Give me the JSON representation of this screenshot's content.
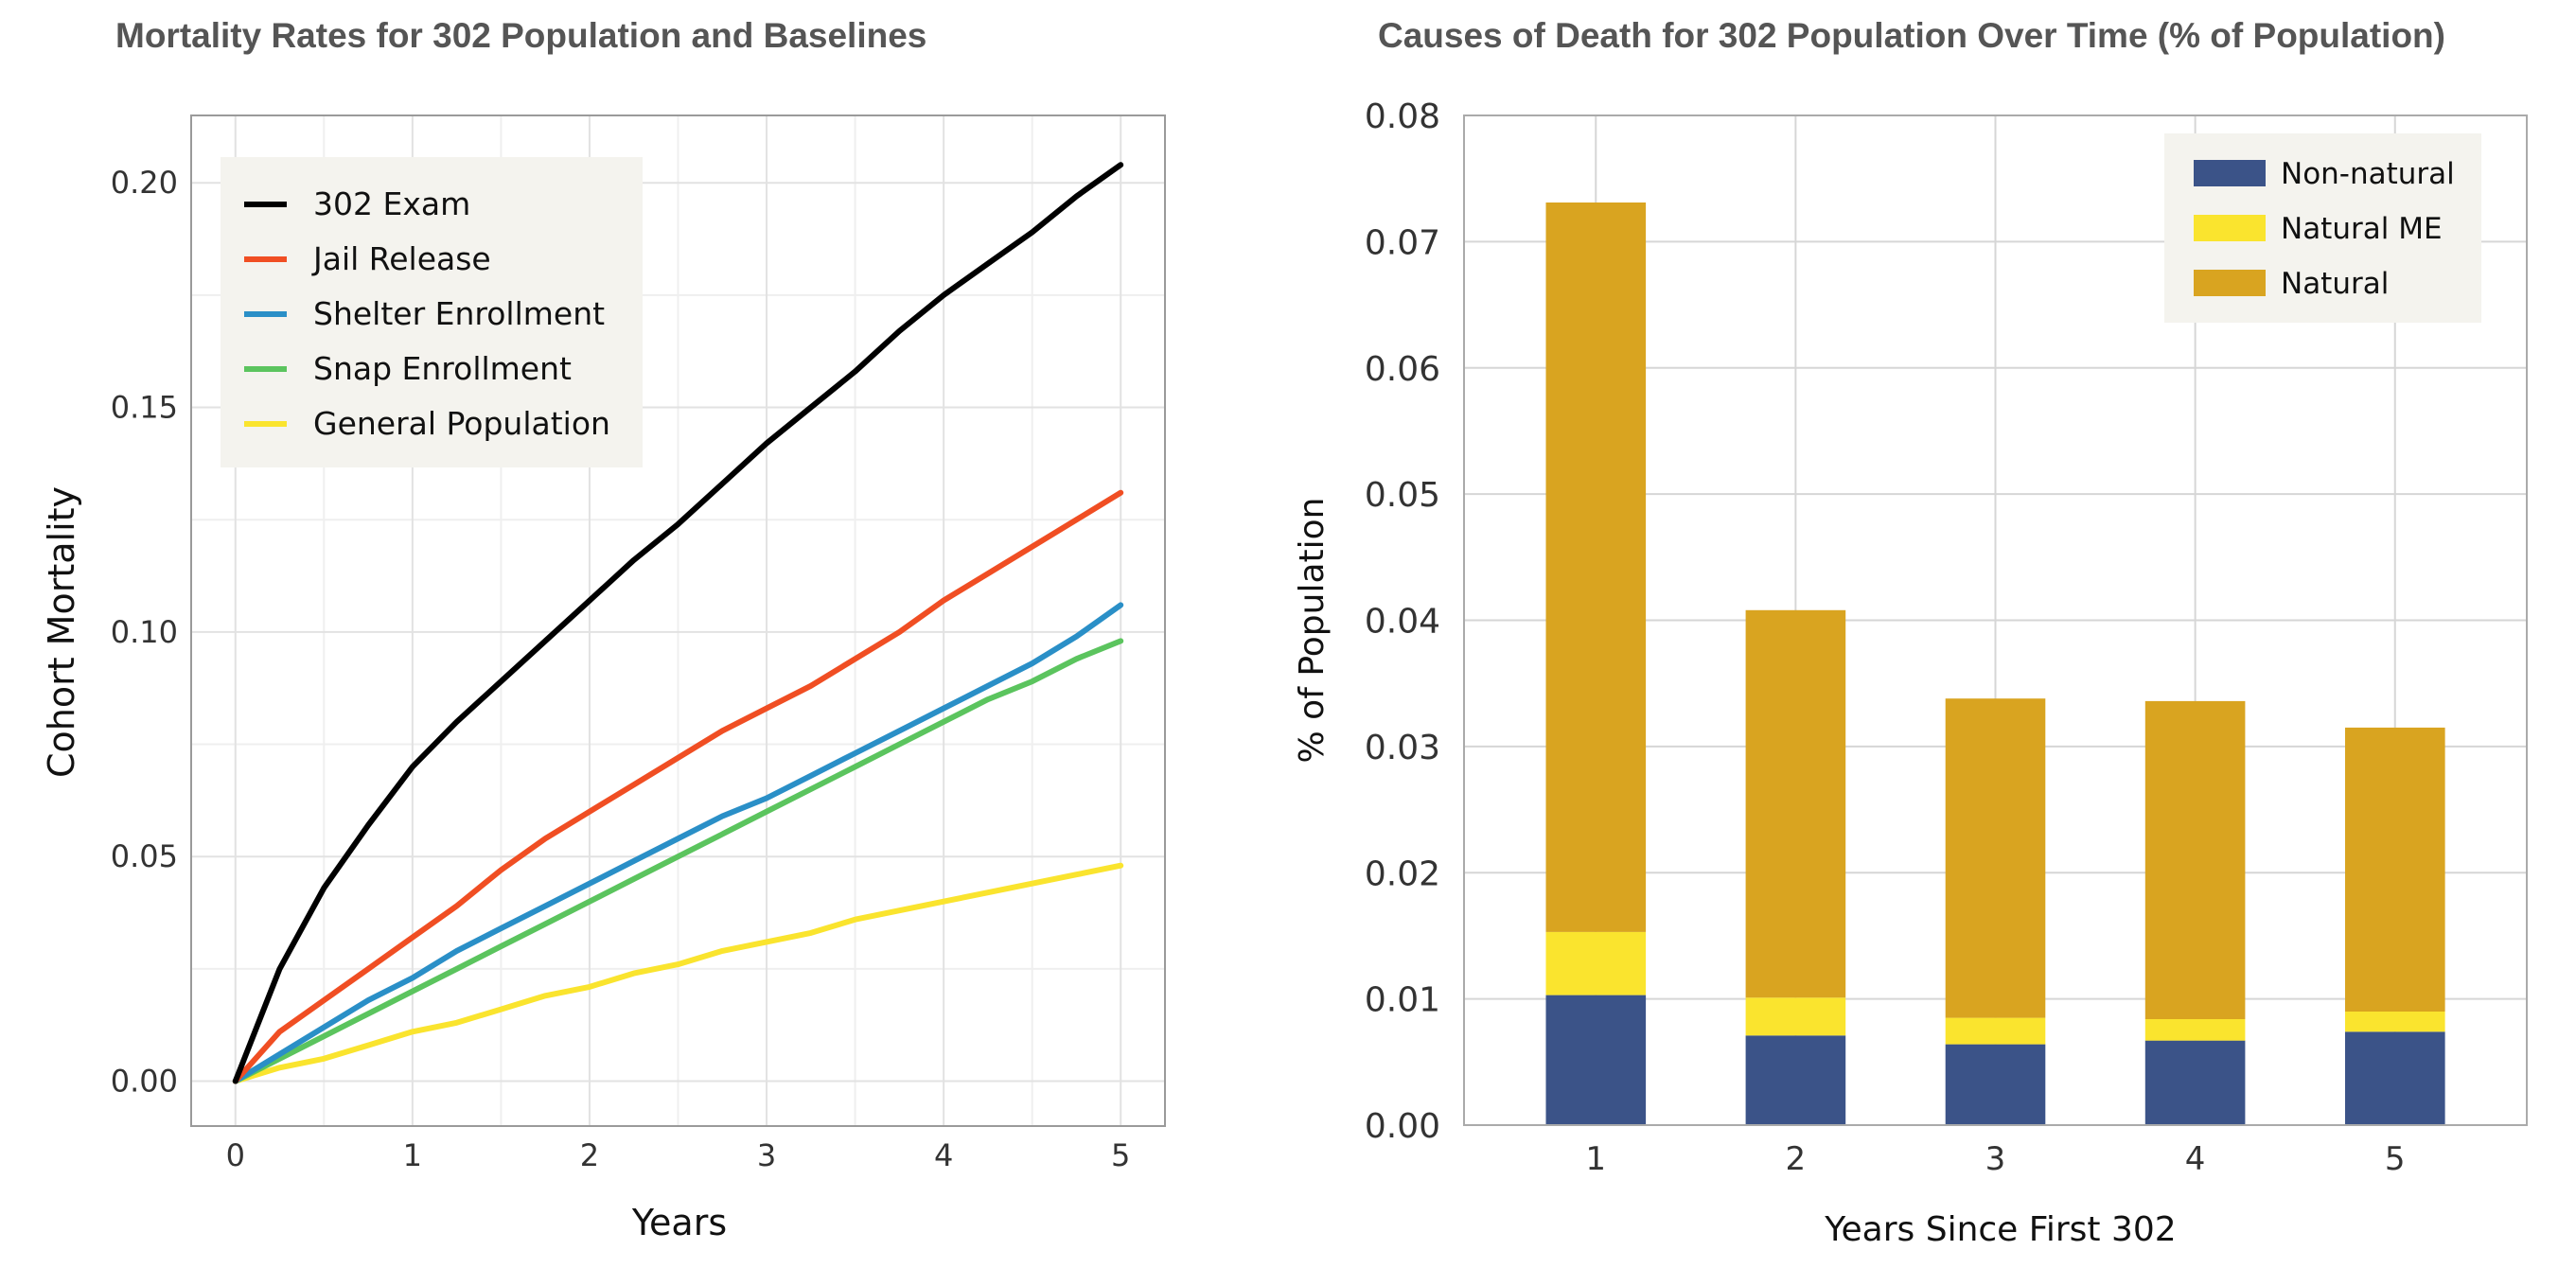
{
  "chart_data": [
    {
      "type": "line",
      "title": "Mortality Rates for 302 Population and Baselines",
      "xlabel": "Years",
      "ylabel": "Cohort Mortality",
      "xlim": [
        -0.25,
        5.25
      ],
      "ylim": [
        -0.01,
        0.215
      ],
      "xticks": [
        0,
        1,
        2,
        3,
        4,
        5
      ],
      "xtick_labels": [
        "0",
        "1",
        "2",
        "3",
        "4",
        "5"
      ],
      "yticks": [
        0.0,
        0.05,
        0.1,
        0.15,
        0.2
      ],
      "ytick_labels": [
        "0.00",
        "0.05",
        "0.10",
        "0.15",
        "0.20"
      ],
      "grid": true,
      "legend_position": "top-left",
      "x": [
        0,
        0.25,
        0.5,
        0.75,
        1,
        1.25,
        1.5,
        1.75,
        2,
        2.25,
        2.5,
        2.75,
        3,
        3.25,
        3.5,
        3.75,
        4,
        4.25,
        4.5,
        4.75,
        5
      ],
      "series": [
        {
          "name": "302 Exam",
          "color": "#000000",
          "values": [
            0.0,
            0.025,
            0.043,
            0.057,
            0.07,
            0.08,
            0.089,
            0.098,
            0.107,
            0.116,
            0.124,
            0.133,
            0.142,
            0.15,
            0.158,
            0.167,
            0.175,
            0.182,
            0.189,
            0.197,
            0.204
          ]
        },
        {
          "name": "Jail Release",
          "color": "#F04E23",
          "values": [
            0.0,
            0.011,
            0.018,
            0.025,
            0.032,
            0.039,
            0.047,
            0.054,
            0.06,
            0.066,
            0.072,
            0.078,
            0.083,
            0.088,
            0.094,
            0.1,
            0.107,
            0.113,
            0.119,
            0.125,
            0.131
          ]
        },
        {
          "name": "Shelter Enrollment",
          "color": "#2A8FC7",
          "values": [
            0.0,
            0.006,
            0.012,
            0.018,
            0.023,
            0.029,
            0.034,
            0.039,
            0.044,
            0.049,
            0.054,
            0.059,
            0.063,
            0.068,
            0.073,
            0.078,
            0.083,
            0.088,
            0.093,
            0.099,
            0.106
          ]
        },
        {
          "name": "Snap Enrollment",
          "color": "#5BC45E",
          "values": [
            0.0,
            0.005,
            0.01,
            0.015,
            0.02,
            0.025,
            0.03,
            0.035,
            0.04,
            0.045,
            0.05,
            0.055,
            0.06,
            0.065,
            0.07,
            0.075,
            0.08,
            0.085,
            0.089,
            0.094,
            0.098
          ]
        },
        {
          "name": "General Population",
          "color": "#FAE42E",
          "values": [
            0.0,
            0.003,
            0.005,
            0.008,
            0.011,
            0.013,
            0.016,
            0.019,
            0.021,
            0.024,
            0.026,
            0.029,
            0.031,
            0.033,
            0.036,
            0.038,
            0.04,
            0.042,
            0.044,
            0.046,
            0.048
          ]
        }
      ]
    },
    {
      "type": "bar",
      "stacked": true,
      "title": "Causes of Death for 302 Population Over Time (% of Population)",
      "xlabel": "Years Since First 302",
      "ylabel": "% of Population",
      "categories": [
        "1",
        "2",
        "3",
        "4",
        "5"
      ],
      "ylim": [
        0.0,
        0.08
      ],
      "yticks": [
        0.0,
        0.01,
        0.02,
        0.03,
        0.04,
        0.05,
        0.06,
        0.07,
        0.08
      ],
      "ytick_labels": [
        "0.00",
        "0.01",
        "0.02",
        "0.03",
        "0.04",
        "0.05",
        "0.06",
        "0.07",
        "0.08"
      ],
      "grid": true,
      "legend_position": "top-right",
      "series": [
        {
          "name": "Non-natural",
          "color": "#3B5388",
          "values": [
            0.0103,
            0.0071,
            0.0064,
            0.0067,
            0.0074
          ]
        },
        {
          "name": "Natural ME",
          "color": "#FAE42E",
          "values": [
            0.005,
            0.003,
            0.0021,
            0.0017,
            0.0016
          ]
        },
        {
          "name": "Natural",
          "color": "#D9A420",
          "values": [
            0.0578,
            0.0307,
            0.0253,
            0.0252,
            0.0225
          ]
        }
      ]
    }
  ]
}
